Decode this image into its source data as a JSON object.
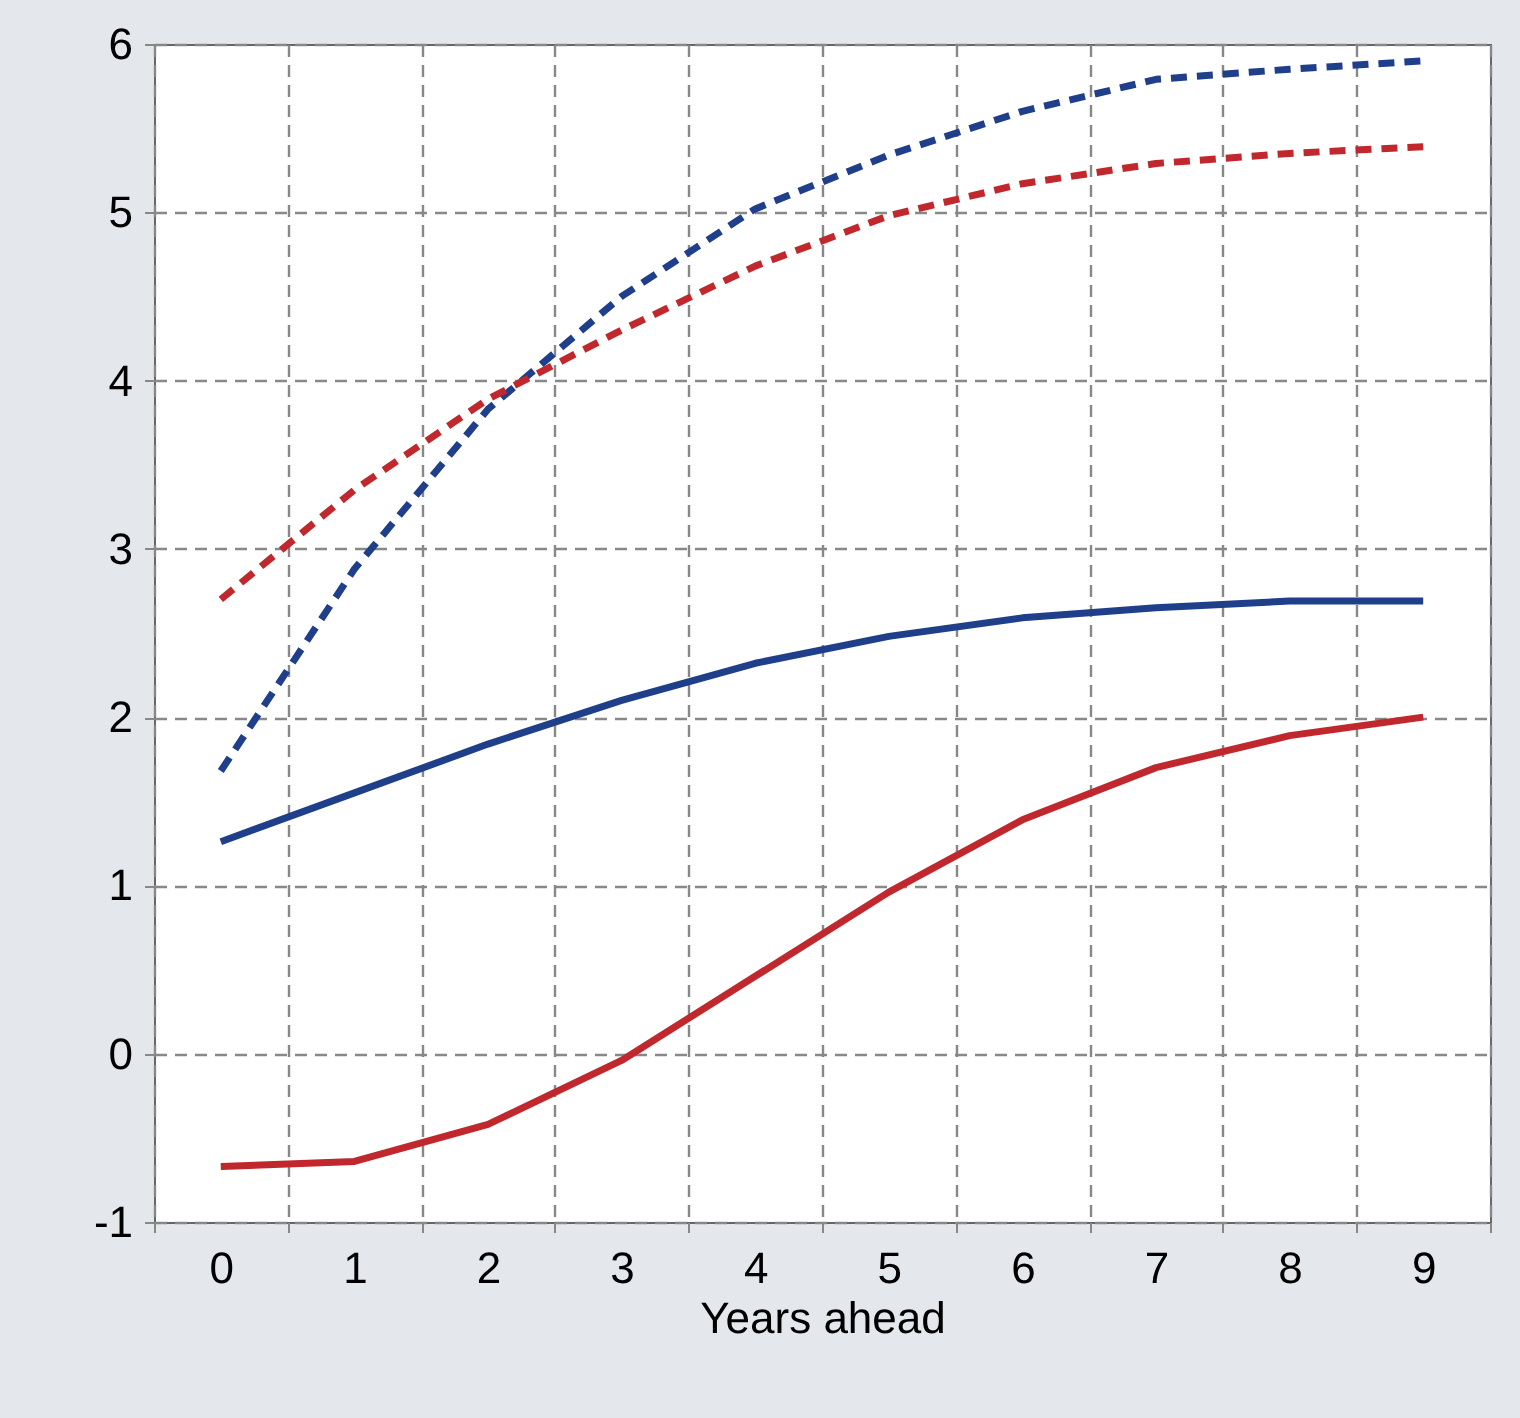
{
  "chart_data": {
    "type": "line",
    "xlabel": "Years ahead",
    "categories": [
      "0",
      "1",
      "2",
      "3",
      "4",
      "5",
      "6",
      "7",
      "8",
      "9"
    ],
    "series": [
      {
        "color": "#1f3f8a",
        "line_style": "dashed",
        "values": [
          1.68,
          2.88,
          3.83,
          4.5,
          5.02,
          5.34,
          5.6,
          5.79,
          5.85,
          5.9
        ]
      },
      {
        "color": "#c0282d",
        "line_style": "dashed",
        "values": [
          2.7,
          3.35,
          3.89,
          4.3,
          4.68,
          4.98,
          5.17,
          5.29,
          5.35,
          5.39
        ]
      },
      {
        "color": "#1f3f8a",
        "line_style": "solid",
        "values": [
          1.26,
          1.55,
          1.84,
          2.1,
          2.32,
          2.48,
          2.59,
          2.65,
          2.69,
          2.69
        ]
      },
      {
        "color": "#c0282d",
        "line_style": "solid",
        "values": [
          -0.67,
          -0.64,
          -0.42,
          -0.04,
          0.46,
          0.96,
          1.39,
          1.7,
          1.89,
          2.0
        ]
      }
    ],
    "ylim": [
      -1,
      6
    ],
    "yticks": [
      -1,
      0,
      1,
      2,
      3,
      4,
      5,
      6
    ],
    "grid": true,
    "marker": "none"
  }
}
